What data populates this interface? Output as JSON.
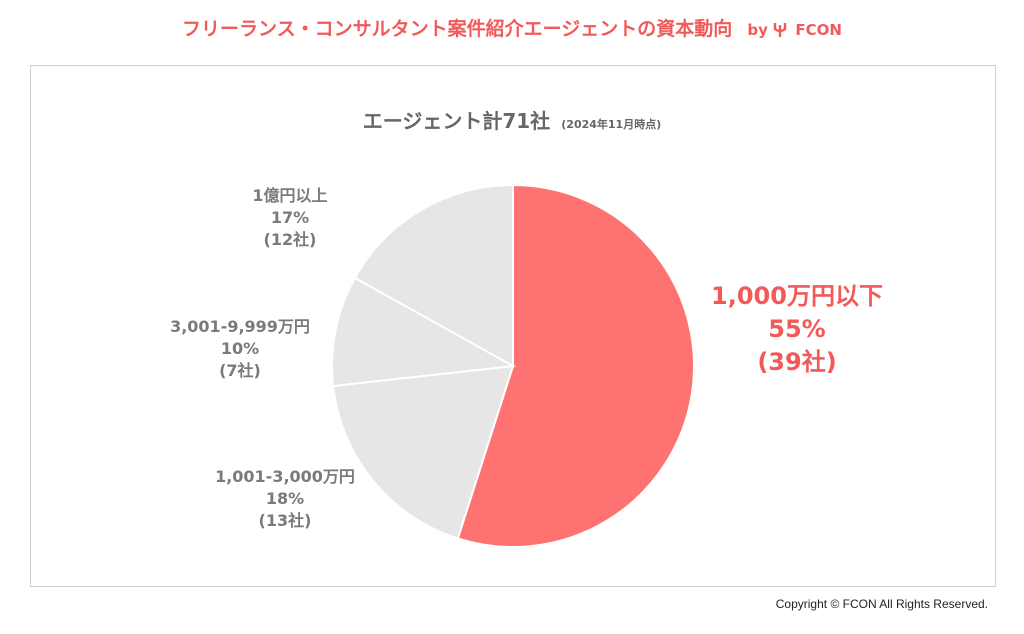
{
  "header": {
    "title": "フリーランス・コンサルタント案件紹介エージェントの資本動向",
    "by": "by",
    "brand": "FCON"
  },
  "chart_data": {
    "type": "pie",
    "title": "エージェント計71社",
    "subtitle": "(2024年11月時点)",
    "total": 71,
    "slices": [
      {
        "label": "1,000万円以下",
        "percent_label": "55%",
        "count_label": "(39社)",
        "value": 39,
        "color": "#ff7272"
      },
      {
        "label": "1,001-3,000万円",
        "percent_label": "18%",
        "count_label": "(13社)",
        "value": 13,
        "color": "#e6e6e6"
      },
      {
        "label": "3,001-9,999万円",
        "percent_label": "10%",
        "count_label": "(7社)",
        "value": 7,
        "color": "#e6e6e6"
      },
      {
        "label": "1億円以上",
        "percent_label": "17%",
        "count_label": "(12社)",
        "value": 12,
        "color": "#e6e6e6"
      }
    ]
  },
  "footer": {
    "copyright": "Copyright © FCON All Rights Reserved."
  }
}
